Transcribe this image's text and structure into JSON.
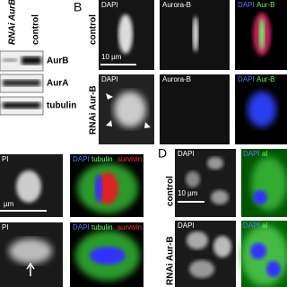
{
  "panel_a": {
    "columns": [
      "RNAi AurB",
      "control"
    ],
    "bands": [
      "AurB",
      "AurA",
      "tubulin"
    ]
  },
  "panel_b": {
    "label": "B",
    "scale_bar": "10 µm",
    "rows": [
      {
        "label": "control",
        "channel": "DAPI",
        "stain": "Aurora-B",
        "merge": [
          "DAPI",
          "Aur-B"
        ]
      },
      {
        "label": "RNAi Aur-B",
        "channel": "DAPI",
        "stain": "Aurora-B",
        "merge": [
          "DAPI",
          "Aur-B"
        ]
      }
    ]
  },
  "panel_c": {
    "scale_bar": "µm",
    "rows": [
      {
        "channel": "PI",
        "merge": [
          "DAPI",
          "tubulin",
          "survivin"
        ]
      },
      {
        "channel": "PI",
        "merge": [
          "DAPI",
          "tubulin",
          "survivin"
        ]
      }
    ]
  },
  "panel_d": {
    "label": "D",
    "scale_bar": "10 µm",
    "rows": [
      {
        "label": "control",
        "channel": "DAPI",
        "merge": [
          "DAPI",
          "al"
        ]
      },
      {
        "label": "RNAi Aur-B",
        "channel": "DAPI",
        "merge": [
          "DAPI",
          "al"
        ]
      }
    ]
  }
}
